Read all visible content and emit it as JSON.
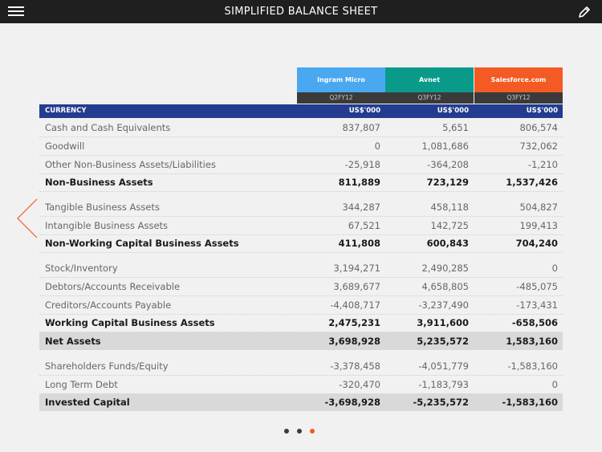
{
  "header": {
    "title": "SIMPLIFIED BALANCE SHEET",
    "menu_icon": "hamburger-icon",
    "edit_icon": "pencil-icon"
  },
  "colors": {
    "ingram": "#4aa8f0",
    "avnet": "#0a9a8a",
    "salesforce": "#f45a24",
    "currency_bar": "#233c8f",
    "accent": "#f45a24"
  },
  "companies": [
    {
      "name": "Ingram Micro",
      "period": "Q2FY12"
    },
    {
      "name": "Avnet",
      "period": "Q3FY12"
    },
    {
      "name": "Salesforce.com",
      "period": "Q3FY12"
    }
  ],
  "currency": {
    "label": "CURRENCY",
    "values": [
      "US$'000",
      "US$'000",
      "US$'000"
    ]
  },
  "rows": [
    {
      "label": "Cash and Cash Equivalents",
      "values": [
        "837,807",
        "5,651",
        "806,574"
      ]
    },
    {
      "label": "Goodwill",
      "values": [
        "0",
        "1,081,686",
        "732,062"
      ]
    },
    {
      "label": "Other Non-Business Assets/Liabilities",
      "values": [
        "-25,918",
        "-364,208",
        "-1,210"
      ]
    },
    {
      "label": "Non-Business Assets",
      "values": [
        "811,889",
        "723,129",
        "1,537,426"
      ]
    },
    {
      "label": "Tangible Business Assets",
      "values": [
        "344,287",
        "458,118",
        "504,827"
      ]
    },
    {
      "label": "Intangible Business Assets",
      "values": [
        "67,521",
        "142,725",
        "199,413"
      ]
    },
    {
      "label": "Non-Working Capital Business Assets",
      "values": [
        "411,808",
        "600,843",
        "704,240"
      ]
    },
    {
      "label": "Stock/Inventory",
      "values": [
        "3,194,271",
        "2,490,285",
        "0"
      ]
    },
    {
      "label": "Debtors/Accounts Receivable",
      "values": [
        "3,689,677",
        "4,658,805",
        "-485,075"
      ]
    },
    {
      "label": "Creditors/Accounts Payable",
      "values": [
        "-4,408,717",
        "-3,237,490",
        "-173,431"
      ]
    },
    {
      "label": "Working Capital Business Assets",
      "values": [
        "2,475,231",
        "3,911,600",
        "-658,506"
      ]
    },
    {
      "label": "Net Assets",
      "values": [
        "3,698,928",
        "5,235,572",
        "1,583,160"
      ]
    },
    {
      "label": "Shareholders Funds/Equity",
      "values": [
        "-3,378,458",
        "-4,051,779",
        "-1,583,160"
      ]
    },
    {
      "label": "Long Term Debt",
      "values": [
        "-320,470",
        "-1,183,793",
        "0"
      ]
    },
    {
      "label": "Invested Capital",
      "values": [
        "-3,698,928",
        "-5,235,572",
        "-1,583,160"
      ]
    }
  ],
  "pagination": {
    "total": 3,
    "current": 3
  }
}
